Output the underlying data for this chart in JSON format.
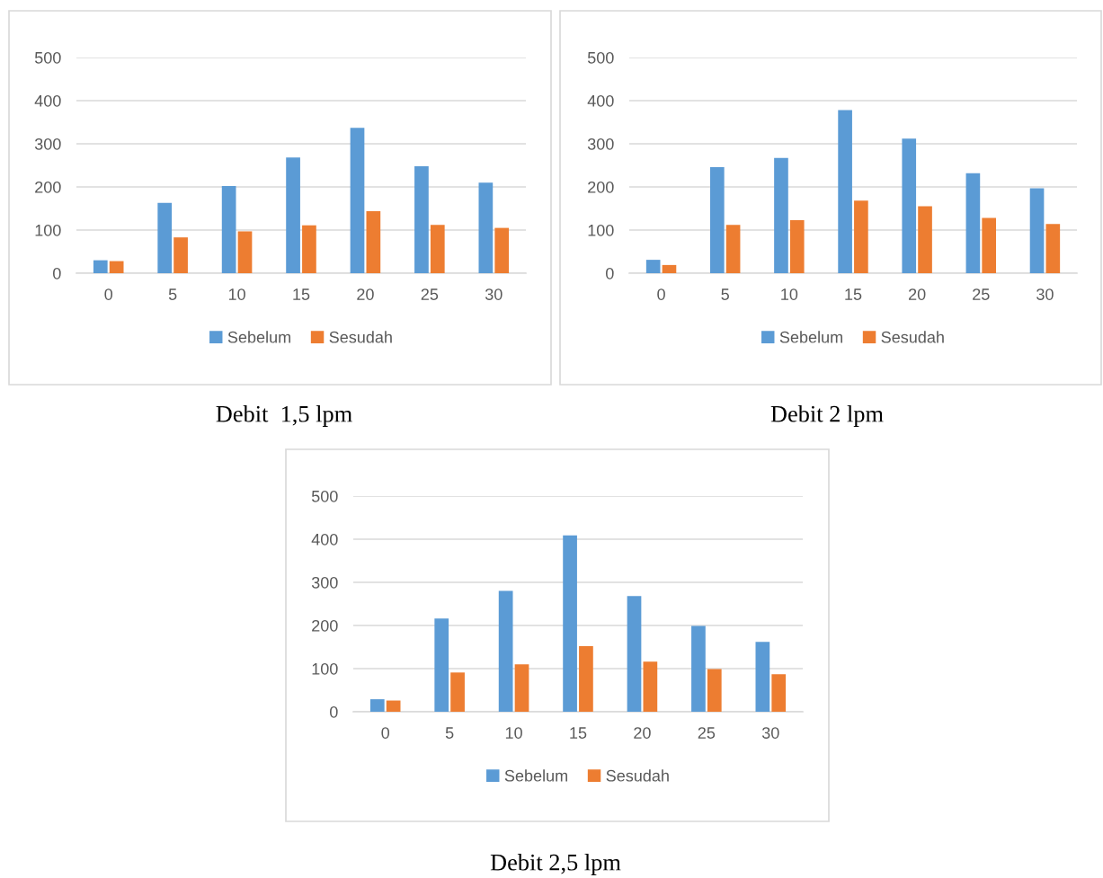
{
  "chart_data": [
    {
      "type": "bar",
      "title": "Debit  1,5 lpm",
      "categories": [
        "0",
        "5",
        "10",
        "15",
        "20",
        "25",
        "30"
      ],
      "series": [
        {
          "name": "Sebelum",
          "color": "#5b9bd5",
          "values": [
            30,
            163,
            202,
            268,
            337,
            248,
            210
          ]
        },
        {
          "name": "Sesudah",
          "color": "#ed7d31",
          "values": [
            28,
            83,
            97,
            111,
            144,
            112,
            105
          ]
        }
      ],
      "ylim": [
        0,
        500
      ],
      "yticks": [
        0,
        100,
        200,
        300,
        400,
        500
      ],
      "grid": "y",
      "legend": "bottom"
    },
    {
      "type": "bar",
      "title": "Debit 2 lpm",
      "categories": [
        "0",
        "5",
        "10",
        "15",
        "20",
        "25",
        "30"
      ],
      "series": [
        {
          "name": "Sebelum",
          "color": "#5b9bd5",
          "values": [
            31,
            246,
            267,
            378,
            312,
            232,
            197
          ]
        },
        {
          "name": "Sesudah",
          "color": "#ed7d31",
          "values": [
            19,
            112,
            123,
            168,
            155,
            128,
            114
          ]
        }
      ],
      "ylim": [
        0,
        500
      ],
      "yticks": [
        0,
        100,
        200,
        300,
        400,
        500
      ],
      "grid": "y",
      "legend": "bottom"
    },
    {
      "type": "bar",
      "title": "Debit 2,5 lpm",
      "categories": [
        "0",
        "5",
        "10",
        "15",
        "20",
        "25",
        "30"
      ],
      "series": [
        {
          "name": "Sebelum",
          "color": "#5b9bd5",
          "values": [
            29,
            216,
            280,
            409,
            268,
            199,
            162
          ]
        },
        {
          "name": "Sesudah",
          "color": "#ed7d31",
          "values": [
            26,
            91,
            110,
            152,
            116,
            99,
            87
          ]
        }
      ],
      "ylim": [
        0,
        500
      ],
      "yticks": [
        0,
        100,
        200,
        300,
        400,
        500
      ],
      "grid": "y",
      "legend": "bottom"
    }
  ]
}
